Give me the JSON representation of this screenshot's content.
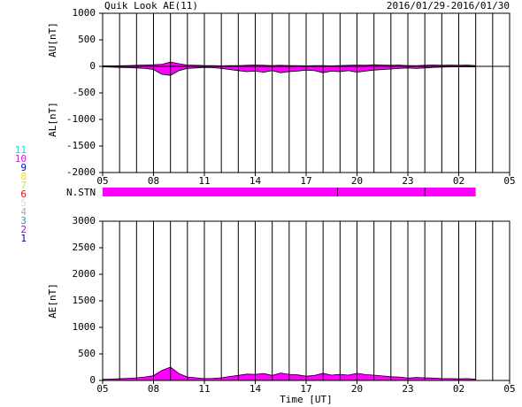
{
  "chart_data": [
    {
      "type": "line",
      "title": "Quik Look AE(11)",
      "subtitle": "2016/01/29-2016/01/30",
      "ylabels": [
        "AU[nT]",
        "AL[nT]"
      ],
      "x": [
        0,
        0.5,
        1,
        1.5,
        2,
        2.5,
        3,
        3.5,
        4,
        4.5,
        5,
        5.5,
        6,
        6.5,
        7,
        7.5,
        8,
        8.5,
        9,
        9.5,
        10,
        10.5,
        11,
        11.5,
        12,
        12.5,
        13,
        13.5,
        14,
        14.5,
        15,
        15.5,
        16,
        16.5,
        17,
        17.5,
        18,
        18.5,
        19,
        19.5,
        20,
        20.5,
        21,
        21.5,
        22
      ],
      "series": [
        {
          "name": "AU",
          "color": "#ff00ff",
          "values": [
            10,
            10,
            12,
            15,
            20,
            25,
            30,
            40,
            80,
            50,
            25,
            20,
            15,
            15,
            10,
            15,
            15,
            20,
            25,
            20,
            15,
            20,
            15,
            15,
            10,
            15,
            15,
            10,
            15,
            20,
            25,
            20,
            30,
            25,
            20,
            25,
            15,
            15,
            20,
            25,
            20,
            25,
            20,
            25,
            15
          ]
        },
        {
          "name": "AL",
          "color": "#ff00ff",
          "values": [
            -10,
            -15,
            -20,
            -25,
            -30,
            -40,
            -60,
            -150,
            -170,
            -80,
            -40,
            -30,
            -20,
            -25,
            -40,
            -60,
            -80,
            -100,
            -90,
            -110,
            -80,
            -120,
            -100,
            -90,
            -70,
            -80,
            -120,
            -90,
            -100,
            -80,
            -110,
            -90,
            -70,
            -60,
            -50,
            -40,
            -30,
            -40,
            -30,
            -20,
            -15,
            -10,
            -10,
            -10,
            -10
          ]
        }
      ],
      "xlim": [
        0,
        24
      ],
      "xticks": [
        {
          "value": 0,
          "label": "05"
        },
        {
          "value": 3,
          "label": "08"
        },
        {
          "value": 6,
          "label": "11"
        },
        {
          "value": 9,
          "label": "14"
        },
        {
          "value": 12,
          "label": "17"
        },
        {
          "value": 15,
          "label": "20"
        },
        {
          "value": 18,
          "label": "23"
        },
        {
          "value": 21,
          "label": "02"
        },
        {
          "value": 24,
          "label": "05"
        }
      ],
      "xgrid": [
        0,
        1,
        2,
        3,
        4,
        5,
        6,
        7,
        8,
        9,
        10,
        11,
        12,
        13,
        14,
        15,
        16,
        17,
        18,
        19,
        20,
        21,
        22,
        23,
        24
      ],
      "ylim": [
        -2000,
        1000
      ],
      "yticks": [
        1000,
        500,
        0,
        -500,
        -1000,
        -1500,
        -2000
      ],
      "station_bar": {
        "label": "N.STN",
        "color": "#ff00ff",
        "x": [
          0,
          22
        ],
        "breaks": [
          13.85,
          19
        ]
      },
      "station_legend": [
        {
          "label": "11",
          "color": "#00e5e5"
        },
        {
          "label": "10",
          "color": "#ff00ff"
        },
        {
          "label": "9",
          "color": "#0000ff"
        },
        {
          "label": "8",
          "color": "#ffe000"
        },
        {
          "label": "7",
          "color": "#c8e060"
        },
        {
          "label": "6",
          "color": "#ff0000"
        },
        {
          "label": "5",
          "color": "#dddddd"
        },
        {
          "label": "4",
          "color": "#aaaaaa"
        },
        {
          "label": "3",
          "color": "#20a0a0"
        },
        {
          "label": "2",
          "color": "#c000c0"
        },
        {
          "label": "1",
          "color": "#0000c0"
        }
      ]
    },
    {
      "type": "area",
      "ylabel": "AE[nT]",
      "xlabel": "Time [UT]",
      "x": [
        0,
        0.5,
        1,
        1.5,
        2,
        2.5,
        3,
        3.5,
        4,
        4.5,
        5,
        5.5,
        6,
        6.5,
        7,
        7.5,
        8,
        8.5,
        9,
        9.5,
        10,
        10.5,
        11,
        11.5,
        12,
        12.5,
        13,
        13.5,
        14,
        14.5,
        15,
        15.5,
        16,
        16.5,
        17,
        17.5,
        18,
        18.5,
        19,
        19.5,
        20,
        20.5,
        21,
        21.5,
        22
      ],
      "series": [
        {
          "name": "AE",
          "color": "#ff00ff",
          "values": [
            20,
            25,
            32,
            40,
            50,
            65,
            90,
            190,
            250,
            130,
            65,
            50,
            35,
            40,
            50,
            75,
            95,
            120,
            115,
            130,
            95,
            140,
            115,
            105,
            80,
            95,
            135,
            100,
            115,
            100,
            135,
            110,
            100,
            85,
            70,
            65,
            45,
            55,
            50,
            45,
            35,
            35,
            30,
            35,
            25
          ]
        }
      ],
      "xlim": [
        0,
        24
      ],
      "xticks": [
        {
          "value": 0,
          "label": "05"
        },
        {
          "value": 3,
          "label": "08"
        },
        {
          "value": 6,
          "label": "11"
        },
        {
          "value": 9,
          "label": "14"
        },
        {
          "value": 12,
          "label": "17"
        },
        {
          "value": 15,
          "label": "20"
        },
        {
          "value": 18,
          "label": "23"
        },
        {
          "value": 21,
          "label": "02"
        },
        {
          "value": 24,
          "label": "05"
        }
      ],
      "xgrid": [
        0,
        1,
        2,
        3,
        4,
        5,
        6,
        7,
        8,
        9,
        10,
        11,
        12,
        13,
        14,
        15,
        16,
        17,
        18,
        19,
        20,
        21,
        22,
        23,
        24
      ],
      "ylim": [
        0,
        3000
      ],
      "yticks": [
        3000,
        2500,
        2000,
        1500,
        1000,
        500,
        0
      ]
    }
  ]
}
